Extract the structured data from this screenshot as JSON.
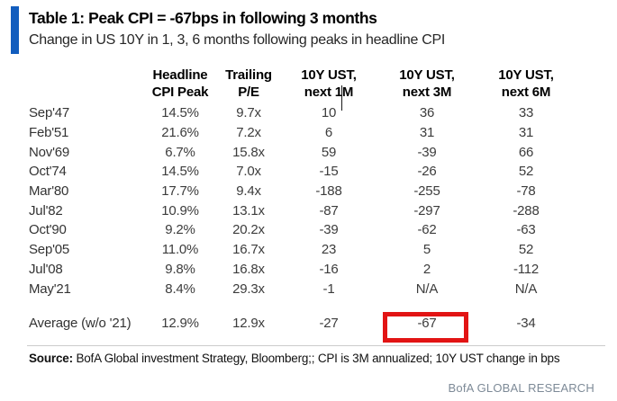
{
  "header": {
    "title": "Table 1: Peak CPI = -67bps in following 3 months",
    "subtitle": "Change in US 10Y in 1, 3, 6 months following peaks in headline CPI",
    "accent_color": "#125dbe"
  },
  "table": {
    "columns": [
      {
        "line1": "",
        "line2": ""
      },
      {
        "line1": "Headline",
        "line2": "CPI Peak"
      },
      {
        "line1": "Trailing",
        "line2": "P/E"
      },
      {
        "line1": "10Y UST,",
        "line2": "next 1M"
      },
      {
        "line1": "10Y UST,",
        "line2": "next 3M"
      },
      {
        "line1": "10Y UST,",
        "line2": "next 6M"
      }
    ]
  },
  "chart_data": {
    "type": "table",
    "title": "Table 1: Peak CPI = -67bps in following 3 months",
    "subtitle": "Change in US 10Y in 1, 3, 6 months following peaks in headline CPI",
    "column_labels": [
      "Headline CPI Peak",
      "Trailing P/E",
      "10Y UST, next 1M",
      "10Y UST, next 3M",
      "10Y UST, next 6M"
    ],
    "rows": [
      {
        "label": "Sep'47",
        "cpi_peak": "14.5%",
        "trailing_pe": "9.7x",
        "ust_1m": "10",
        "ust_3m": "36",
        "ust_6m": "33"
      },
      {
        "label": "Feb'51",
        "cpi_peak": "21.6%",
        "trailing_pe": "7.2x",
        "ust_1m": "6",
        "ust_3m": "31",
        "ust_6m": "31"
      },
      {
        "label": "Nov'69",
        "cpi_peak": "6.7%",
        "trailing_pe": "15.8x",
        "ust_1m": "59",
        "ust_3m": "-39",
        "ust_6m": "66"
      },
      {
        "label": "Oct'74",
        "cpi_peak": "14.5%",
        "trailing_pe": "7.0x",
        "ust_1m": "-15",
        "ust_3m": "-26",
        "ust_6m": "52"
      },
      {
        "label": "Mar'80",
        "cpi_peak": "17.7%",
        "trailing_pe": "9.4x",
        "ust_1m": "-188",
        "ust_3m": "-255",
        "ust_6m": "-78"
      },
      {
        "label": "Jul'82",
        "cpi_peak": "10.9%",
        "trailing_pe": "13.1x",
        "ust_1m": "-87",
        "ust_3m": "-297",
        "ust_6m": "-288"
      },
      {
        "label": "Oct'90",
        "cpi_peak": "9.2%",
        "trailing_pe": "20.2x",
        "ust_1m": "-39",
        "ust_3m": "-62",
        "ust_6m": "-63"
      },
      {
        "label": "Sep'05",
        "cpi_peak": "11.0%",
        "trailing_pe": "16.7x",
        "ust_1m": "23",
        "ust_3m": "5",
        "ust_6m": "52"
      },
      {
        "label": "Jul'08",
        "cpi_peak": "9.8%",
        "trailing_pe": "16.8x",
        "ust_1m": "-16",
        "ust_3m": "2",
        "ust_6m": "-112"
      },
      {
        "label": "May'21",
        "cpi_peak": "8.4%",
        "trailing_pe": "29.3x",
        "ust_1m": "-1",
        "ust_3m": "N/A",
        "ust_6m": "N/A"
      }
    ],
    "average_row": {
      "label": "Average (w/o '21)",
      "cpi_peak": "12.9%",
      "trailing_pe": "12.9x",
      "ust_1m": "-27",
      "ust_3m": "-67",
      "ust_6m": "-34"
    },
    "highlighted_cell": {
      "row": "Average (w/o '21)",
      "column": "10Y UST, next 3M",
      "value": "-67"
    }
  },
  "highlight": {
    "color": "#e21414"
  },
  "source": {
    "label": "Source:",
    "text": "BofA Global investment Strategy, Bloomberg;; CPI is 3M annualized; 10Y UST change in bps"
  },
  "footer": {
    "brand": "BofA GLOBAL RESEARCH",
    "brand_color": "#7d8a97"
  }
}
